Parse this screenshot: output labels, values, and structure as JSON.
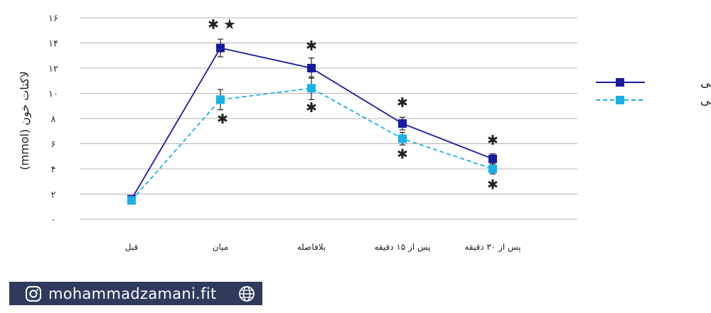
{
  "chart_data": {
    "type": "line",
    "title": "",
    "xlabel": "",
    "ylabel": "لاکتات خون (mmol)",
    "ylim": [
      0,
      16
    ],
    "y_ticks": [
      "۰",
      "۲",
      "۴",
      "۶",
      "۸",
      "۱۰",
      "۱۲",
      "۱۴",
      "۱۶"
    ],
    "y_tick_values": [
      0,
      2,
      4,
      6,
      8,
      10,
      12,
      14,
      16
    ],
    "categories": [
      "قبل",
      "میان",
      "بلافاصله",
      "پس از ۱۵ دقیقه",
      "پس از ۳۰ دقیقه"
    ],
    "grid": true,
    "legend_position": "right",
    "series": [
      {
        "name": "سه ستی",
        "values": [
          1.6,
          13.6,
          12.0,
          7.6,
          4.8
        ],
        "errors": [
          0.0,
          0.7,
          0.8,
          0.5,
          0.4
        ],
        "color": "#1a1aa0",
        "dash": "solid"
      },
      {
        "name": "تک ستی",
        "values": [
          1.5,
          9.5,
          10.4,
          6.4,
          4.0
        ],
        "errors": [
          0.0,
          0.8,
          0.9,
          0.5,
          0.4
        ],
        "color": "#1ab0e8",
        "dash": "dashed"
      }
    ],
    "annotations": [
      {
        "category": 1,
        "y": 15.5,
        "text": "✱"
      },
      {
        "category": 1,
        "y": 15.5,
        "text": "★"
      },
      {
        "category": 1,
        "y": 8.0,
        "text": "✱"
      },
      {
        "category": 2,
        "y": 13.8,
        "text": "✱"
      },
      {
        "category": 2,
        "y": 8.9,
        "text": "✱"
      },
      {
        "category": 3,
        "y": 9.3,
        "text": "✱"
      },
      {
        "category": 3,
        "y": 5.2,
        "text": "✱"
      },
      {
        "category": 4,
        "y": 6.3,
        "text": "✱"
      },
      {
        "category": 4,
        "y": 2.8,
        "text": "✱"
      }
    ]
  },
  "footer": {
    "handle": "mohammadzamani.fit",
    "icons": [
      "instagram-icon",
      "globe-icon"
    ],
    "background": "#2f3a5c"
  }
}
